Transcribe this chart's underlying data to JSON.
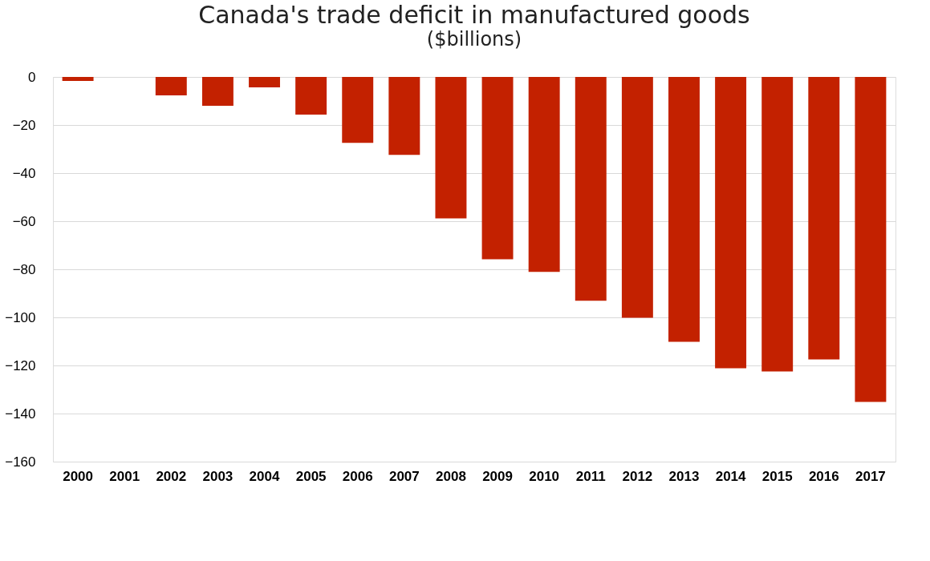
{
  "chart_data": {
    "type": "bar",
    "title": "Canada's trade deficit in manufactured goods",
    "subtitle": "($billions)",
    "categories": [
      "2000",
      "2001",
      "2002",
      "2003",
      "2004",
      "2005",
      "2006",
      "2007",
      "2008",
      "2009",
      "2010",
      "2011",
      "2012",
      "2013",
      "2014",
      "2015",
      "2016",
      "2017"
    ],
    "values": [
      -1.7,
      0,
      -7.7,
      -12,
      -4.3,
      -15.7,
      -27.4,
      -32.4,
      -58.8,
      -75.8,
      -81.1,
      -93.1,
      -100.2,
      -110.2,
      -121.2,
      -122.5,
      -117.5,
      -135.2
    ],
    "color": "#c32100",
    "ylim": [
      -160,
      0
    ],
    "yticks": [
      0,
      -20,
      -40,
      -60,
      -80,
      -100,
      -120,
      -140,
      -160
    ],
    "grid": "y"
  }
}
